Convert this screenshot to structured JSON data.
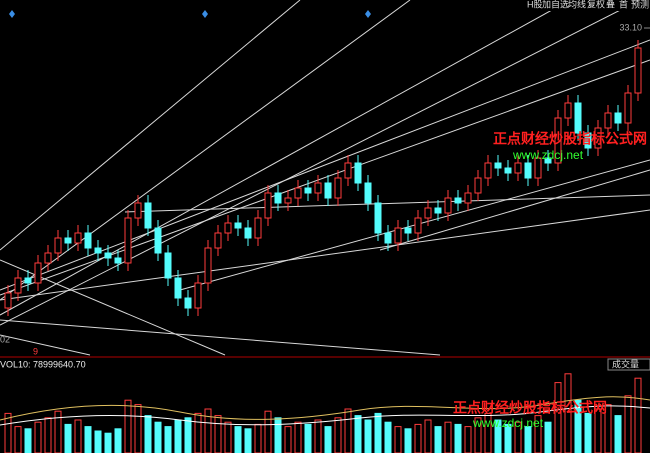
{
  "toolbar": [
    "H股",
    "加自选",
    "均线",
    "复权",
    "叠",
    "首",
    "预测"
  ],
  "corner_label": "02",
  "marker": "9",
  "indicator": "VOL10: 78999640.70",
  "volume_label": "成交量",
  "watermarks": [
    {
      "title": "正点财经炒股指标公式网",
      "url": "www.zdcj.net"
    },
    {
      "title": "正点财经炒股指标公式网",
      "url": "www.zdcj.net"
    }
  ],
  "chart_data": {
    "type": "candlestick",
    "up_color": "#ff3c3c",
    "down_color": "#54fcfc",
    "ylim": [
      29.9,
      33.38
    ],
    "yticks": [
      {
        "value": 33.1,
        "label": "33.10"
      }
    ],
    "volume_ylim": [
      0,
      200000000
    ],
    "open": [
      30.3,
      30.45,
      30.6,
      30.55,
      30.75,
      30.85,
      31.0,
      30.95,
      31.05,
      30.9,
      30.85,
      30.8,
      30.75,
      31.2,
      31.35,
      31.1,
      30.85,
      30.6,
      30.4,
      30.3,
      30.55,
      30.9,
      31.05,
      31.15,
      31.1,
      31.0,
      31.2,
      31.45,
      31.35,
      31.4,
      31.5,
      31.45,
      31.55,
      31.4,
      31.6,
      31.75,
      31.55,
      31.35,
      31.05,
      30.95,
      31.1,
      31.05,
      31.2,
      31.3,
      31.25,
      31.4,
      31.35,
      31.45,
      31.6,
      31.75,
      31.7,
      31.65,
      31.75,
      31.6,
      31.8,
      31.75,
      32.2,
      32.35,
      32.05,
      31.9,
      32.1,
      32.25,
      32.15,
      32.45
    ],
    "high": [
      30.53,
      30.68,
      30.68,
      30.83,
      30.93,
      31.08,
      31.08,
      31.13,
      31.13,
      30.98,
      30.93,
      30.88,
      31.28,
      31.43,
      31.43,
      31.18,
      30.93,
      30.68,
      30.48,
      30.63,
      30.98,
      31.13,
      31.23,
      31.23,
      31.18,
      31.28,
      31.53,
      31.53,
      31.48,
      31.58,
      31.58,
      31.63,
      31.63,
      31.68,
      31.83,
      31.83,
      31.63,
      31.43,
      31.13,
      31.18,
      31.18,
      31.28,
      31.38,
      31.38,
      31.48,
      31.48,
      31.53,
      31.68,
      31.83,
      31.83,
      31.78,
      31.83,
      31.83,
      31.88,
      31.88,
      32.28,
      32.43,
      32.43,
      32.13,
      32.18,
      32.33,
      32.33,
      32.53,
      32.98
    ],
    "low": [
      30.22,
      30.37,
      30.47,
      30.47,
      30.67,
      30.77,
      30.87,
      30.87,
      30.82,
      30.77,
      30.72,
      30.67,
      30.67,
      31.12,
      31.02,
      30.77,
      30.52,
      30.32,
      30.22,
      30.22,
      30.47,
      30.82,
      30.97,
      31.02,
      30.92,
      30.92,
      31.12,
      31.27,
      31.27,
      31.32,
      31.37,
      31.37,
      31.32,
      31.32,
      31.52,
      31.47,
      31.27,
      30.97,
      30.87,
      30.87,
      30.97,
      30.97,
      31.12,
      31.17,
      31.17,
      31.27,
      31.27,
      31.37,
      31.52,
      31.62,
      31.57,
      31.57,
      31.52,
      31.52,
      31.67,
      31.67,
      32.12,
      31.97,
      31.82,
      31.82,
      32.02,
      32.07,
      32.07,
      32.37
    ],
    "close": [
      30.45,
      30.6,
      30.55,
      30.75,
      30.85,
      31.0,
      30.95,
      31.05,
      30.9,
      30.85,
      30.8,
      30.75,
      31.2,
      31.35,
      31.1,
      30.85,
      30.6,
      30.4,
      30.3,
      30.55,
      30.9,
      31.05,
      31.15,
      31.1,
      31.0,
      31.2,
      31.45,
      31.35,
      31.4,
      31.5,
      31.45,
      31.55,
      31.4,
      31.6,
      31.75,
      31.55,
      31.35,
      31.05,
      30.95,
      31.1,
      31.05,
      31.2,
      31.3,
      31.25,
      31.4,
      31.35,
      31.45,
      31.6,
      31.75,
      31.7,
      31.65,
      31.75,
      31.6,
      31.8,
      31.75,
      32.2,
      32.35,
      32.05,
      31.9,
      32.1,
      32.25,
      32.15,
      32.45,
      32.9
    ],
    "volume": [
      90000000,
      60000000,
      55000000,
      70000000,
      80000000,
      95000000,
      65000000,
      75000000,
      60000000,
      50000000,
      45000000,
      55000000,
      120000000,
      110000000,
      85000000,
      70000000,
      60000000,
      75000000,
      80000000,
      90000000,
      100000000,
      85000000,
      70000000,
      60000000,
      55000000,
      65000000,
      95000000,
      80000000,
      60000000,
      70000000,
      65000000,
      75000000,
      60000000,
      80000000,
      100000000,
      85000000,
      75000000,
      90000000,
      70000000,
      60000000,
      55000000,
      65000000,
      75000000,
      60000000,
      70000000,
      65000000,
      60000000,
      80000000,
      90000000,
      75000000,
      65000000,
      70000000,
      60000000,
      85000000,
      70000000,
      160000000,
      180000000,
      120000000,
      90000000,
      100000000,
      110000000,
      85000000,
      130000000,
      170000000
    ]
  }
}
